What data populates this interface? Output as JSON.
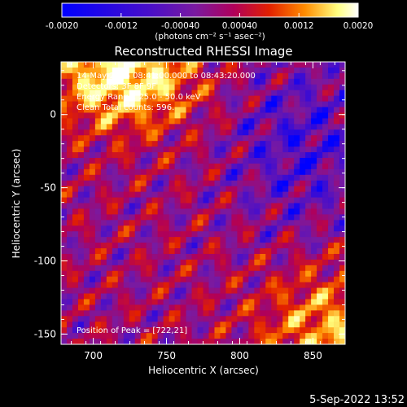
{
  "chart_data": {
    "type": "heatmap",
    "title": "Reconstructed RHESSI Image",
    "xlabel": "Heliocentric X (arcsec)",
    "ylabel": "Heliocentric Y (arcsec)",
    "xlim": [
      678,
      872
    ],
    "ylim": [
      -157,
      36
    ],
    "x_ticks": [
      700,
      750,
      800,
      850
    ],
    "y_ticks": [
      0,
      -50,
      -100,
      -150
    ],
    "colorbar": {
      "ticks": [
        "-0.0020",
        "-0.0012",
        "-0.00040",
        "0.00040",
        "0.0012",
        "0.0020"
      ],
      "tick_values": [
        -0.002,
        -0.0012,
        -0.0004,
        0.0004,
        0.0012,
        0.002
      ],
      "range": [
        -0.002,
        0.002
      ],
      "label": "(photons cm⁻² s⁻¹ asec⁻²)"
    },
    "annotations": [
      "14-May-2016 08:41:00.000 to 08:43:20.000",
      "Detectors: 3F 8F 9F",
      "Energy Range: 25.0 - 50.0 keV",
      "Clean  Total counts: 596."
    ],
    "peak_label": "Position of Peak = [722,21]",
    "pixel_grid": {
      "nx": 50,
      "ny": 50
    },
    "colormap": [
      "#0000ff",
      "#4a0fc8",
      "#7a1aa0",
      "#b0005a",
      "#e22000",
      "#ff8c00",
      "#ffff80",
      "#ffffff"
    ]
  },
  "footer": {
    "timestamp": "5-Sep-2022 13:52"
  }
}
